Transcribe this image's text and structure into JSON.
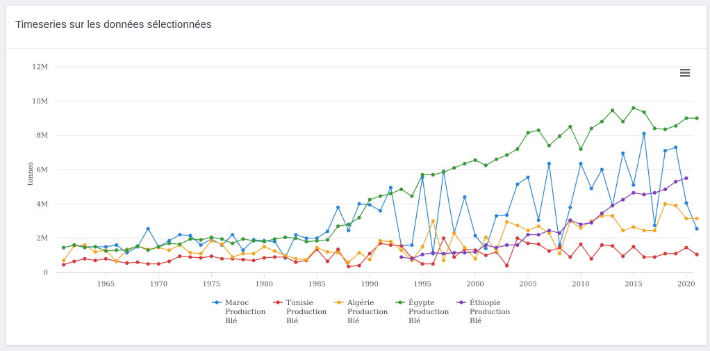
{
  "panel": {
    "title": "Timeseries sur les données sélectionnées"
  },
  "icons": {
    "menu": "hamburger-menu-icon"
  },
  "chart_data": {
    "type": "line",
    "title": "",
    "xlabel": "",
    "ylabel": "tonnes",
    "xlim": [
      1961,
      2020
    ],
    "ylim": [
      0,
      12000000
    ],
    "x_ticks": [
      1965,
      1970,
      1975,
      1980,
      1985,
      1990,
      1995,
      2000,
      2005,
      2010,
      2015,
      2020
    ],
    "y_ticks": [
      {
        "value": 0,
        "label": "0"
      },
      {
        "value": 2000000,
        "label": "2M"
      },
      {
        "value": 4000000,
        "label": "4M"
      },
      {
        "value": 6000000,
        "label": "6M"
      },
      {
        "value": 8000000,
        "label": "8M"
      },
      {
        "value": 10000000,
        "label": "10M"
      },
      {
        "value": 12000000,
        "label": "12M"
      }
    ],
    "grid": "horizontal",
    "legend_position": "bottom",
    "series": [
      {
        "name": "Maroc Production Blé",
        "legend_lines": [
          "Maroc",
          "Production",
          "Blé"
        ],
        "color": "#2b86db",
        "start_year": 1961,
        "values": [
          1450000,
          1600000,
          1500000,
          1500000,
          1500000,
          1600000,
          1150000,
          1500000,
          2550000,
          1500000,
          1850000,
          2200000,
          2150000,
          1600000,
          1950000,
          1600000,
          2200000,
          1300000,
          1900000,
          1850000,
          1800000,
          850000,
          2200000,
          2000000,
          2000000,
          2400000,
          3800000,
          2450000,
          4000000,
          3950000,
          3600000,
          4950000,
          1550000,
          1600000,
          5550000,
          1100000,
          5900000,
          2300000,
          4400000,
          2150000,
          1400000,
          3300000,
          3350000,
          5150000,
          5550000,
          3050000,
          6350000,
          1600000,
          3800000,
          6350000,
          4900000,
          6000000,
          3900000,
          6950000,
          5100000,
          8100000,
          2750000,
          7100000,
          7300000,
          4050000,
          2550000
        ]
      },
      {
        "name": "Tunisie Production Blé",
        "legend_lines": [
          "Tunisie",
          "Production",
          "Blé"
        ],
        "color": "#d63a3a",
        "start_year": 1961,
        "values": [
          450000,
          650000,
          800000,
          700000,
          800000,
          650000,
          550000,
          600000,
          500000,
          500000,
          650000,
          950000,
          900000,
          850000,
          950000,
          800000,
          800000,
          750000,
          700000,
          850000,
          900000,
          900000,
          600000,
          700000,
          1350000,
          650000,
          1350000,
          350000,
          400000,
          1100000,
          1700000,
          1600000,
          1550000,
          850000,
          500000,
          500000,
          2000000,
          900000,
          1350000,
          1300000,
          1000000,
          1200000,
          400000,
          2000000,
          1700000,
          1650000,
          1250000,
          1450000,
          900000,
          1650000,
          800000,
          1600000,
          1550000,
          950000,
          1500000,
          900000,
          900000,
          1100000,
          1100000,
          1450000,
          1050000
        ]
      },
      {
        "name": "Algérie Production Blé",
        "legend_lines": [
          "Algérie",
          "Production",
          "Blé"
        ],
        "color": "#f5a623",
        "start_year": 1961,
        "values": [
          700000,
          1550000,
          1600000,
          1200000,
          1300000,
          650000,
          1350000,
          1550000,
          1350000,
          1450000,
          1300000,
          1600000,
          1150000,
          1100000,
          1850000,
          1650000,
          900000,
          1100000,
          1100000,
          1500000,
          1250000,
          1000000,
          800000,
          750000,
          1450000,
          1200000,
          1150000,
          600000,
          1150000,
          750000,
          1850000,
          1800000,
          1300000,
          700000,
          1500000,
          3000000,
          700000,
          2300000,
          1450000,
          800000,
          2050000,
          1250000,
          2950000,
          2750000,
          2450000,
          2700000,
          2300000,
          1100000,
          3000000,
          2600000,
          3000000,
          3300000,
          3300000,
          2450000,
          2650000,
          2450000,
          2450000,
          4000000,
          3900000,
          3150000,
          3150000
        ]
      },
      {
        "name": "Égypte Production Blé",
        "legend_lines": [
          "Égypte",
          "Production",
          "Blé"
        ],
        "color": "#3a9a3a",
        "start_year": 1961,
        "values": [
          1450000,
          1600000,
          1450000,
          1500000,
          1250000,
          1300000,
          1300000,
          1550000,
          1300000,
          1500000,
          1700000,
          1650000,
          1950000,
          1900000,
          2050000,
          1950000,
          1700000,
          1950000,
          1850000,
          1800000,
          1950000,
          2050000,
          2000000,
          1800000,
          1850000,
          1900000,
          2700000,
          2800000,
          3200000,
          4250000,
          4450000,
          4600000,
          4850000,
          4450000,
          5700000,
          5700000,
          5850000,
          6100000,
          6350000,
          6550000,
          6250000,
          6600000,
          6850000,
          7200000,
          8150000,
          8300000,
          7400000,
          7950000,
          8500000,
          7200000,
          8400000,
          8800000,
          9450000,
          8800000,
          9600000,
          9350000,
          8400000,
          8350000,
          8550000,
          9000000,
          9000000
        ]
      },
      {
        "name": "Éthiopie Production Blé",
        "legend_lines": [
          "Éthiopie",
          "Production",
          "Blé"
        ],
        "color": "#7e3fb8",
        "start_year": 1993,
        "values": [
          900000,
          800000,
          1050000,
          1150000,
          1100000,
          1150000,
          1150000,
          1200000,
          1600000,
          1450000,
          1600000,
          1600000,
          2200000,
          2200000,
          2450000,
          2300000,
          3050000,
          2800000,
          2900000,
          3450000,
          3900000,
          4250000,
          4650000,
          4550000,
          4650000,
          4850000,
          5300000,
          5500000
        ]
      }
    ]
  }
}
